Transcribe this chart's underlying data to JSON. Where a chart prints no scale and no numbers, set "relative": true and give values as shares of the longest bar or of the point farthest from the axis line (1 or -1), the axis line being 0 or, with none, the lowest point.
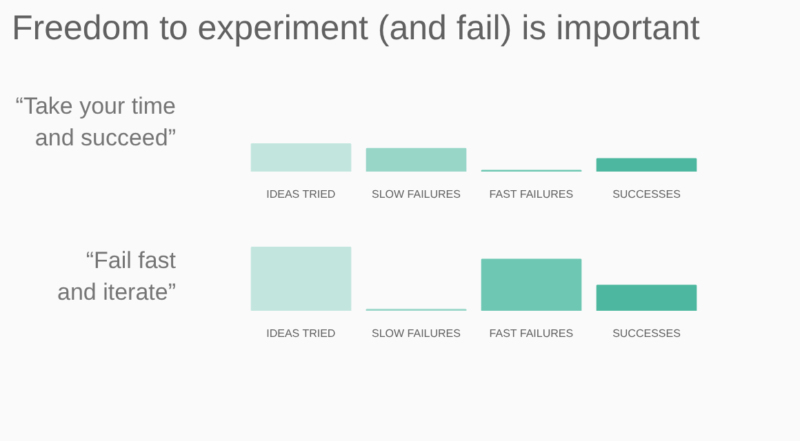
{
  "chart_data": [
    {
      "type": "bar",
      "title": "Freedom to experiment (and fail) is important",
      "subtitle": "“Take your time\nand succeed”",
      "categories": [
        "IDEAS TRIED",
        "SLOW FAILURES",
        "FAST FAILURES",
        "SUCCESSES"
      ],
      "values": [
        1,
        0.83,
        0.04,
        0.46
      ],
      "colors": [
        "#c2e6de",
        "#98d6c8",
        "#6ec7b3",
        "#4db89f"
      ],
      "relative": true
    },
    {
      "type": "bar",
      "subtitle": "“Fail fast\nand iterate”",
      "categories": [
        "IDEAS TRIED",
        "SLOW FAILURES",
        "FAST FAILURES",
        "SUCCESSES"
      ],
      "values": [
        1,
        0.02,
        0.81,
        0.4
      ],
      "colors": [
        "#c2e6de",
        "#98d6c8",
        "#6ec7b3",
        "#4db89f"
      ],
      "relative": true
    }
  ]
}
